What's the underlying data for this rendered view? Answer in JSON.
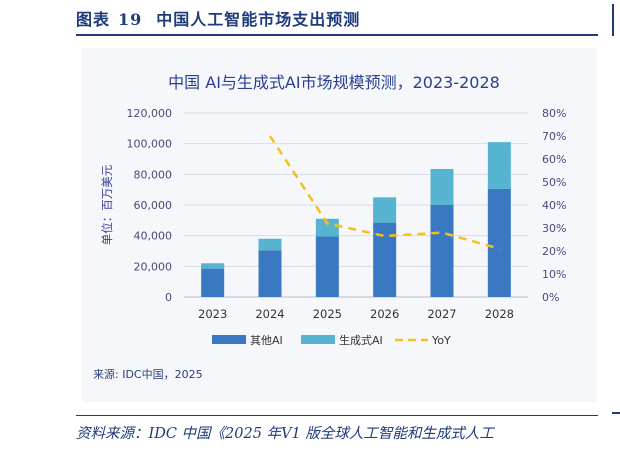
{
  "header": {
    "label": "图表",
    "number": "19",
    "title": "中国人工智能市场支出预测"
  },
  "source_note": "来源: IDC中国，2025",
  "footer": "资料来源：IDC 中国《2025 年V1 版全球人工智能和生成式人工",
  "colors": {
    "other_ai": "#3a78c2",
    "genai": "#56b4d0",
    "yoy": "#f2c21b",
    "title": "#2a3f8f",
    "header": "#1f3b7a"
  },
  "chart_data": {
    "type": "bar",
    "stacked": true,
    "title": "中国 AI与生成式AI市场规模预测，2023-2028",
    "ylabel": "单位：百万美元",
    "categories": [
      "2023",
      "2024",
      "2025",
      "2026",
      "2027",
      "2028"
    ],
    "ylim": [
      0,
      120000
    ],
    "yticks": [
      "0",
      "20,000",
      "40,000",
      "60,000",
      "80,000",
      "100,000",
      "120,000"
    ],
    "y2lim": [
      0,
      80
    ],
    "y2ticks": [
      "0%",
      "10%",
      "20%",
      "30%",
      "40%",
      "50%",
      "60%",
      "70%",
      "80%"
    ],
    "grid": true,
    "legend_position": "bottom",
    "series": [
      {
        "name": "其他AI",
        "type": "bar",
        "values": [
          18500,
          30500,
          39500,
          48500,
          60000,
          70500
        ]
      },
      {
        "name": "生成式AI",
        "type": "bar",
        "values": [
          3500,
          7500,
          11500,
          16500,
          23500,
          30500
        ]
      },
      {
        "name": "YoY",
        "type": "line",
        "axis": "right",
        "values": [
          null,
          70,
          32,
          26.5,
          28,
          21
        ]
      }
    ]
  }
}
